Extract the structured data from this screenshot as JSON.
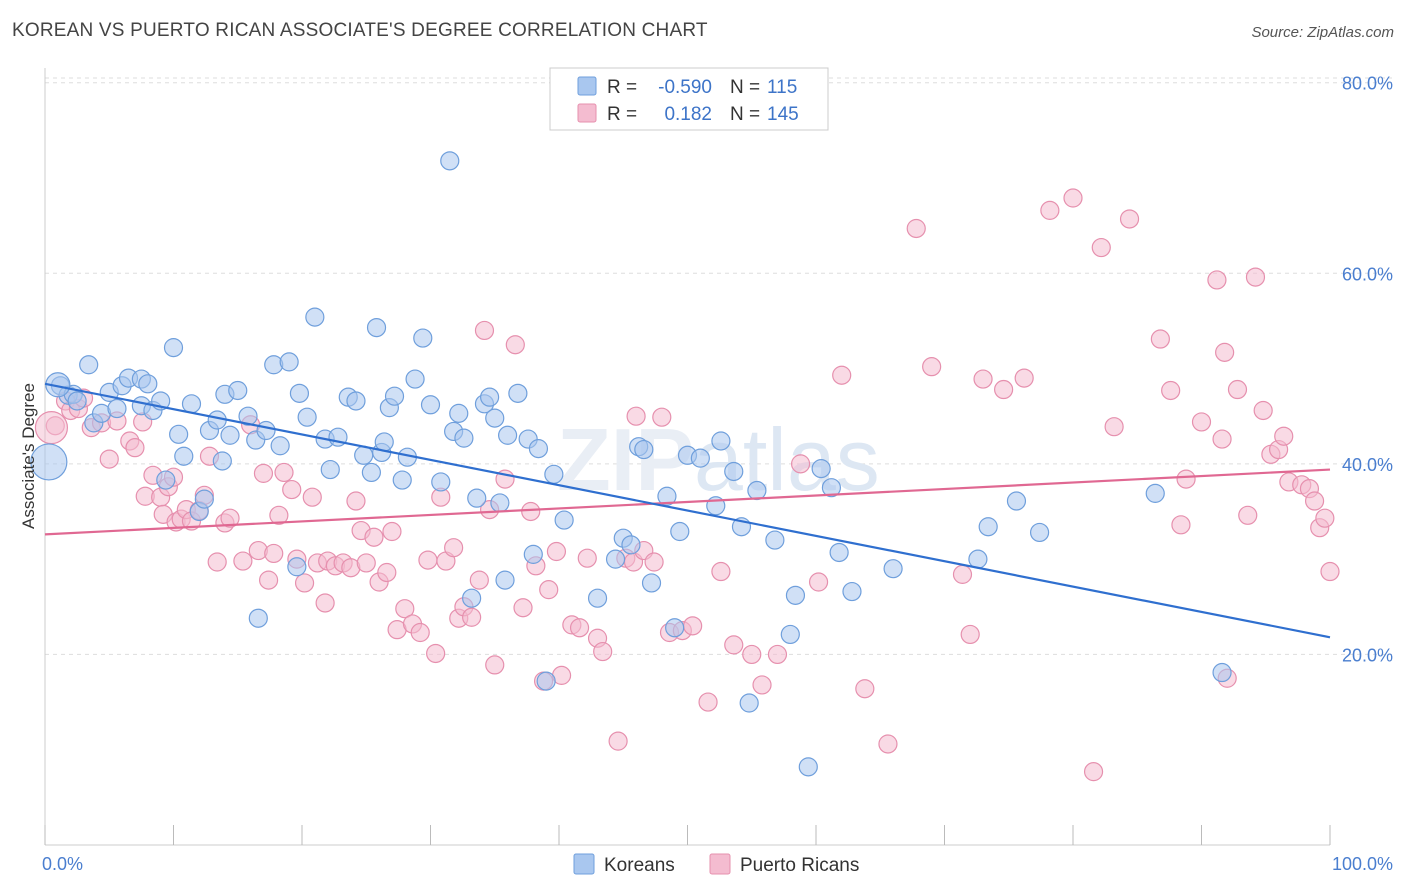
{
  "title": "KOREAN VS PUERTO RICAN ASSOCIATE'S DEGREE CORRELATION CHART",
  "source": "Source: ZipAtlas.com",
  "watermark": "ZIPatlas",
  "colors": {
    "korean_fill": "#a9c7ef",
    "korean_stroke": "#6f9fdc",
    "korean_line": "#2f6fcf",
    "pr_fill": "#f4bcd0",
    "pr_stroke": "#e690ae",
    "pr_line": "#e06892",
    "grid": "#dddddd",
    "tick_text": "#4a7ecf"
  },
  "legend": {
    "rows": [
      {
        "r_label": "R =",
        "r_value": "-0.590",
        "n_label": "N =",
        "n_value": "115"
      },
      {
        "r_label": "R =",
        "r_value": "0.182",
        "n_label": "N =",
        "n_value": "145"
      }
    ]
  },
  "bottom_legend": [
    "Koreans",
    "Puerto Ricans"
  ],
  "chart_data": {
    "type": "scatter",
    "title": "KOREAN VS PUERTO RICAN ASSOCIATE'S DEGREE CORRELATION CHART",
    "xlabel": "",
    "ylabel": "Associate's Degree",
    "xlim": [
      0,
      100
    ],
    "ylim": [
      0,
      82
    ],
    "x_tick_labels": [
      "0.0%",
      "100.0%"
    ],
    "y_ticks": [
      20,
      40,
      60,
      80
    ],
    "y_tick_labels": [
      "20.0%",
      "40.0%",
      "60.0%",
      "80.0%"
    ],
    "grid": "horizontal dashed",
    "legend_position": "top-center",
    "series": [
      {
        "name": "Koreans",
        "r": -0.59,
        "n": 115,
        "trend": {
          "x": [
            0,
            100
          ],
          "y": [
            48.4,
            21.8
          ]
        },
        "points": [
          [
            1.2,
            48.2
          ],
          [
            1.8,
            47.2
          ],
          [
            2.2,
            47.3
          ],
          [
            2.5,
            46.6
          ],
          [
            3.4,
            50.4
          ],
          [
            3.8,
            44.3
          ],
          [
            4.4,
            45.3
          ],
          [
            5.0,
            47.5
          ],
          [
            5.6,
            45.8
          ],
          [
            6.0,
            48.2
          ],
          [
            6.5,
            49.0
          ],
          [
            7.5,
            46.1
          ],
          [
            7.5,
            48.9
          ],
          [
            8.0,
            48.4
          ],
          [
            8.4,
            45.6
          ],
          [
            9.0,
            46.6
          ],
          [
            9.4,
            38.3
          ],
          [
            10.0,
            52.2
          ],
          [
            10.4,
            43.1
          ],
          [
            10.8,
            40.8
          ],
          [
            11.4,
            46.3
          ],
          [
            12.0,
            35.0
          ],
          [
            12.4,
            36.3
          ],
          [
            12.8,
            43.5
          ],
          [
            13.4,
            44.6
          ],
          [
            13.8,
            40.3
          ],
          [
            14.0,
            47.3
          ],
          [
            14.4,
            43.0
          ],
          [
            15.0,
            47.7
          ],
          [
            15.8,
            45.0
          ],
          [
            16.4,
            42.5
          ],
          [
            16.6,
            23.8
          ],
          [
            17.2,
            43.5
          ],
          [
            17.8,
            50.4
          ],
          [
            18.3,
            41.9
          ],
          [
            19.0,
            50.7
          ],
          [
            19.6,
            29.2
          ],
          [
            19.8,
            47.4
          ],
          [
            20.4,
            44.9
          ],
          [
            21.0,
            55.4
          ],
          [
            21.8,
            42.6
          ],
          [
            22.2,
            39.4
          ],
          [
            22.8,
            42.8
          ],
          [
            23.6,
            47.0
          ],
          [
            24.2,
            46.6
          ],
          [
            24.8,
            40.9
          ],
          [
            25.4,
            39.1
          ],
          [
            25.8,
            54.3
          ],
          [
            26.2,
            41.2
          ],
          [
            26.4,
            42.3
          ],
          [
            26.8,
            45.9
          ],
          [
            27.2,
            47.1
          ],
          [
            27.8,
            38.3
          ],
          [
            28.2,
            40.7
          ],
          [
            28.8,
            48.9
          ],
          [
            29.4,
            53.2
          ],
          [
            30.0,
            46.2
          ],
          [
            30.8,
            38.1
          ],
          [
            31.5,
            71.8
          ],
          [
            31.8,
            43.4
          ],
          [
            32.2,
            45.3
          ],
          [
            32.6,
            42.7
          ],
          [
            33.2,
            25.9
          ],
          [
            33.6,
            36.4
          ],
          [
            34.2,
            46.3
          ],
          [
            34.6,
            47.0
          ],
          [
            35.0,
            44.8
          ],
          [
            35.4,
            35.9
          ],
          [
            35.8,
            27.8
          ],
          [
            36.0,
            43.0
          ],
          [
            36.8,
            47.4
          ],
          [
            37.6,
            42.6
          ],
          [
            38.0,
            30.5
          ],
          [
            38.4,
            41.6
          ],
          [
            39.0,
            17.2
          ],
          [
            39.6,
            38.9
          ],
          [
            40.4,
            34.1
          ],
          [
            43.0,
            25.9
          ],
          [
            44.4,
            30.0
          ],
          [
            45.0,
            32.2
          ],
          [
            45.6,
            31.5
          ],
          [
            46.2,
            41.8
          ],
          [
            46.6,
            41.5
          ],
          [
            47.2,
            27.5
          ],
          [
            48.4,
            36.6
          ],
          [
            49.0,
            22.8
          ],
          [
            49.4,
            32.9
          ],
          [
            50.0,
            40.9
          ],
          [
            51.0,
            40.6
          ],
          [
            52.2,
            35.6
          ],
          [
            52.6,
            42.4
          ],
          [
            53.6,
            39.2
          ],
          [
            54.2,
            33.4
          ],
          [
            54.8,
            14.9
          ],
          [
            55.4,
            37.2
          ],
          [
            56.8,
            32.0
          ],
          [
            58.0,
            22.1
          ],
          [
            58.4,
            26.2
          ],
          [
            59.4,
            8.2
          ],
          [
            60.4,
            39.5
          ],
          [
            61.2,
            37.5
          ],
          [
            61.8,
            30.7
          ],
          [
            62.8,
            26.6
          ],
          [
            66.0,
            29.0
          ],
          [
            72.6,
            30.0
          ],
          [
            73.4,
            33.4
          ],
          [
            75.6,
            36.1
          ],
          [
            77.4,
            32.8
          ],
          [
            86.4,
            36.9
          ],
          [
            91.6,
            18.1
          ]
        ]
      },
      {
        "name": "Puerto Ricans",
        "r": 0.182,
        "n": 145,
        "trend": {
          "x": [
            0,
            100
          ],
          "y": [
            32.6,
            39.4
          ]
        },
        "points": [
          [
            0.8,
            44.0
          ],
          [
            1.6,
            46.6
          ],
          [
            2.0,
            45.6
          ],
          [
            2.6,
            45.8
          ],
          [
            3.0,
            46.9
          ],
          [
            3.6,
            43.8
          ],
          [
            4.4,
            44.3
          ],
          [
            5.0,
            40.5
          ],
          [
            5.6,
            44.5
          ],
          [
            6.6,
            42.4
          ],
          [
            7.0,
            41.7
          ],
          [
            7.6,
            44.4
          ],
          [
            7.8,
            36.6
          ],
          [
            8.4,
            38.8
          ],
          [
            9.0,
            36.5
          ],
          [
            9.2,
            34.7
          ],
          [
            9.6,
            37.6
          ],
          [
            10.0,
            38.6
          ],
          [
            10.2,
            33.9
          ],
          [
            10.6,
            34.2
          ],
          [
            11.0,
            35.2
          ],
          [
            11.4,
            34.0
          ],
          [
            12.0,
            35.1
          ],
          [
            12.4,
            36.7
          ],
          [
            12.8,
            40.8
          ],
          [
            13.4,
            29.7
          ],
          [
            14.0,
            33.8
          ],
          [
            14.4,
            34.3
          ],
          [
            15.4,
            29.8
          ],
          [
            16.0,
            44.1
          ],
          [
            16.6,
            30.9
          ],
          [
            17.0,
            39.0
          ],
          [
            17.4,
            27.8
          ],
          [
            17.8,
            30.6
          ],
          [
            18.2,
            34.6
          ],
          [
            18.6,
            39.1
          ],
          [
            19.2,
            37.3
          ],
          [
            19.6,
            30.0
          ],
          [
            20.2,
            27.5
          ],
          [
            20.8,
            36.5
          ],
          [
            21.2,
            29.6
          ],
          [
            21.8,
            25.4
          ],
          [
            22.0,
            29.8
          ],
          [
            22.6,
            29.3
          ],
          [
            23.2,
            29.6
          ],
          [
            23.8,
            29.1
          ],
          [
            24.2,
            36.1
          ],
          [
            24.6,
            33.0
          ],
          [
            25.0,
            29.6
          ],
          [
            25.6,
            32.3
          ],
          [
            26.0,
            27.6
          ],
          [
            26.6,
            28.6
          ],
          [
            27.0,
            32.9
          ],
          [
            27.4,
            22.6
          ],
          [
            28.0,
            24.8
          ],
          [
            28.6,
            23.2
          ],
          [
            29.2,
            22.3
          ],
          [
            29.8,
            29.9
          ],
          [
            30.4,
            20.1
          ],
          [
            30.8,
            36.5
          ],
          [
            31.2,
            29.8
          ],
          [
            31.8,
            31.2
          ],
          [
            32.2,
            23.8
          ],
          [
            32.6,
            25.0
          ],
          [
            33.2,
            23.9
          ],
          [
            33.8,
            27.8
          ],
          [
            34.2,
            54.0
          ],
          [
            34.6,
            35.2
          ],
          [
            35.0,
            18.9
          ],
          [
            35.8,
            38.4
          ],
          [
            36.6,
            52.5
          ],
          [
            37.2,
            24.9
          ],
          [
            37.8,
            35.0
          ],
          [
            38.2,
            29.3
          ],
          [
            38.8,
            17.2
          ],
          [
            39.2,
            26.8
          ],
          [
            39.8,
            30.8
          ],
          [
            40.2,
            17.8
          ],
          [
            41.0,
            23.1
          ],
          [
            41.6,
            22.8
          ],
          [
            42.2,
            30.1
          ],
          [
            43.0,
            21.7
          ],
          [
            43.4,
            20.3
          ],
          [
            44.6,
            10.9
          ],
          [
            45.2,
            30.1
          ],
          [
            45.8,
            29.7
          ],
          [
            46.0,
            45.0
          ],
          [
            46.6,
            30.9
          ],
          [
            47.4,
            29.7
          ],
          [
            48.0,
            44.9
          ],
          [
            48.6,
            22.3
          ],
          [
            49.6,
            22.5
          ],
          [
            50.4,
            23.0
          ],
          [
            51.6,
            15.0
          ],
          [
            52.6,
            28.7
          ],
          [
            53.6,
            21.0
          ],
          [
            55.0,
            20.0
          ],
          [
            55.8,
            16.8
          ],
          [
            57.0,
            20.0
          ],
          [
            58.8,
            40.0
          ],
          [
            60.2,
            27.6
          ],
          [
            62.0,
            49.3
          ],
          [
            63.8,
            16.4
          ],
          [
            65.6,
            10.6
          ],
          [
            67.8,
            64.7
          ],
          [
            69.0,
            50.2
          ],
          [
            71.4,
            28.4
          ],
          [
            72.0,
            22.1
          ],
          [
            73.0,
            48.9
          ],
          [
            74.6,
            47.8
          ],
          [
            76.2,
            49.0
          ],
          [
            78.2,
            66.6
          ],
          [
            80.0,
            67.9
          ],
          [
            81.6,
            7.7
          ],
          [
            82.2,
            62.7
          ],
          [
            83.2,
            43.9
          ],
          [
            84.4,
            65.7
          ],
          [
            86.8,
            53.1
          ],
          [
            87.6,
            47.7
          ],
          [
            88.4,
            33.6
          ],
          [
            88.8,
            38.4
          ],
          [
            90.0,
            44.4
          ],
          [
            91.2,
            59.3
          ],
          [
            91.6,
            42.6
          ],
          [
            91.8,
            51.7
          ],
          [
            92.0,
            17.5
          ],
          [
            92.8,
            47.8
          ],
          [
            93.6,
            34.6
          ],
          [
            94.2,
            59.6
          ],
          [
            94.8,
            45.6
          ],
          [
            95.4,
            41.0
          ],
          [
            96.0,
            41.5
          ],
          [
            96.4,
            42.9
          ],
          [
            96.8,
            38.1
          ],
          [
            97.8,
            37.8
          ],
          [
            98.4,
            37.4
          ],
          [
            98.8,
            36.1
          ],
          [
            99.2,
            33.3
          ],
          [
            99.6,
            34.3
          ],
          [
            100.0,
            28.7
          ]
        ]
      }
    ]
  }
}
